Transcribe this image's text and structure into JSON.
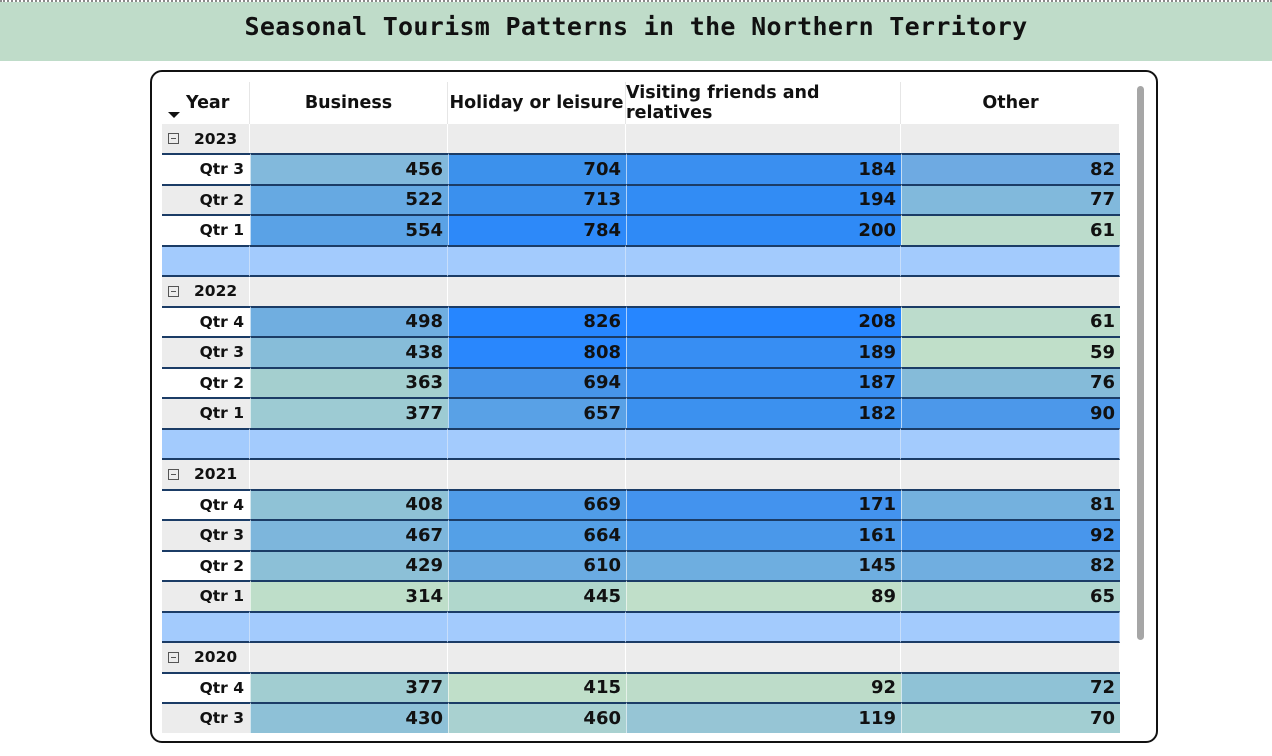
{
  "title": "Seasonal Tourism Patterns in the Northern Territory",
  "columns": [
    "Year",
    "Business",
    "Holiday or leisure",
    "Visiting friends and relatives",
    "Other"
  ],
  "years": [
    {
      "label": "2023",
      "rows": [
        {
          "label": "Qtr 3",
          "values": [
            "456",
            "704",
            "184",
            "82"
          ],
          "colors": [
            "#82b9dc",
            "#3c91ec",
            "#3a8ff0",
            "#6eaae2"
          ],
          "label_bg": "#ffffff"
        },
        {
          "label": "Qtr 2",
          "values": [
            "522",
            "713",
            "194",
            "77"
          ],
          "colors": [
            "#66a9e2",
            "#3a90ee",
            "#328cf4",
            "#81b9dc"
          ],
          "label_bg": "#ececec"
        },
        {
          "label": "Qtr 1",
          "values": [
            "554",
            "784",
            "200",
            "61"
          ],
          "colors": [
            "#5aa2e6",
            "#2d89f9",
            "#2f8af6",
            "#bcdccc"
          ],
          "label_bg": "#ffffff"
        }
      ]
    },
    {
      "label": "2022",
      "rows": [
        {
          "label": "Qtr 4",
          "values": [
            "498",
            "826",
            "208",
            "61"
          ],
          "colors": [
            "#70aee0",
            "#2686ff",
            "#2686ff",
            "#bcdccc"
          ],
          "label_bg": "#ffffff"
        },
        {
          "label": "Qtr 3",
          "values": [
            "438",
            "808",
            "189",
            "59"
          ],
          "colors": [
            "#87bdd9",
            "#2987fd",
            "#378ef3",
            "#c0dfc9"
          ],
          "label_bg": "#ececec"
        },
        {
          "label": "Qtr 2",
          "values": [
            "363",
            "694",
            "187",
            "76"
          ],
          "colors": [
            "#a4cfcf",
            "#4795ea",
            "#398ff2",
            "#85bbd9"
          ],
          "label_bg": "#ffffff"
        },
        {
          "label": "Qtr 1",
          "values": [
            "377",
            "657",
            "182",
            "90"
          ],
          "colors": [
            "#9dcbd3",
            "#59a1e6",
            "#3c91ef",
            "#4c98ea"
          ],
          "label_bg": "#ececec"
        }
      ]
    },
    {
      "label": "2021",
      "rows": [
        {
          "label": "Qtr 4",
          "values": [
            "408",
            "669",
            "171",
            "81"
          ],
          "colors": [
            "#8fc2d6",
            "#509ce8",
            "#4393ee",
            "#74b1de"
          ],
          "label_bg": "#ffffff"
        },
        {
          "label": "Qtr 3",
          "values": [
            "467",
            "664",
            "161",
            "92"
          ],
          "colors": [
            "#7db6dc",
            "#54a0e7",
            "#4a98ea",
            "#4896ec"
          ],
          "label_bg": "#ececec"
        },
        {
          "label": "Qtr 2",
          "values": [
            "429",
            "610",
            "145",
            "82"
          ],
          "colors": [
            "#8cc0d7",
            "#6aabe2",
            "#6eaee0",
            "#70aee0"
          ],
          "label_bg": "#ffffff"
        },
        {
          "label": "Qtr 1",
          "values": [
            "314",
            "445",
            "89",
            "65"
          ],
          "colors": [
            "#bedec9",
            "#b0d7cc",
            "#c0dfc9",
            "#b0d6cf"
          ],
          "label_bg": "#ececec"
        }
      ]
    },
    {
      "label": "2020",
      "rows": [
        {
          "label": "Qtr 4",
          "values": [
            "377",
            "415",
            "92",
            "72"
          ],
          "colors": [
            "#a1cdd1",
            "#c0dfc9",
            "#bddcc9",
            "#8fc2d6"
          ],
          "label_bg": "#ffffff"
        },
        {
          "label": "Qtr 3",
          "values": [
            "430",
            "460",
            "119",
            "70"
          ],
          "colors": [
            "#8ec1d7",
            "#a9d1d0",
            "#96c5d5",
            "#a2ced2"
          ],
          "label_bg": "#ececec"
        }
      ]
    }
  ]
}
